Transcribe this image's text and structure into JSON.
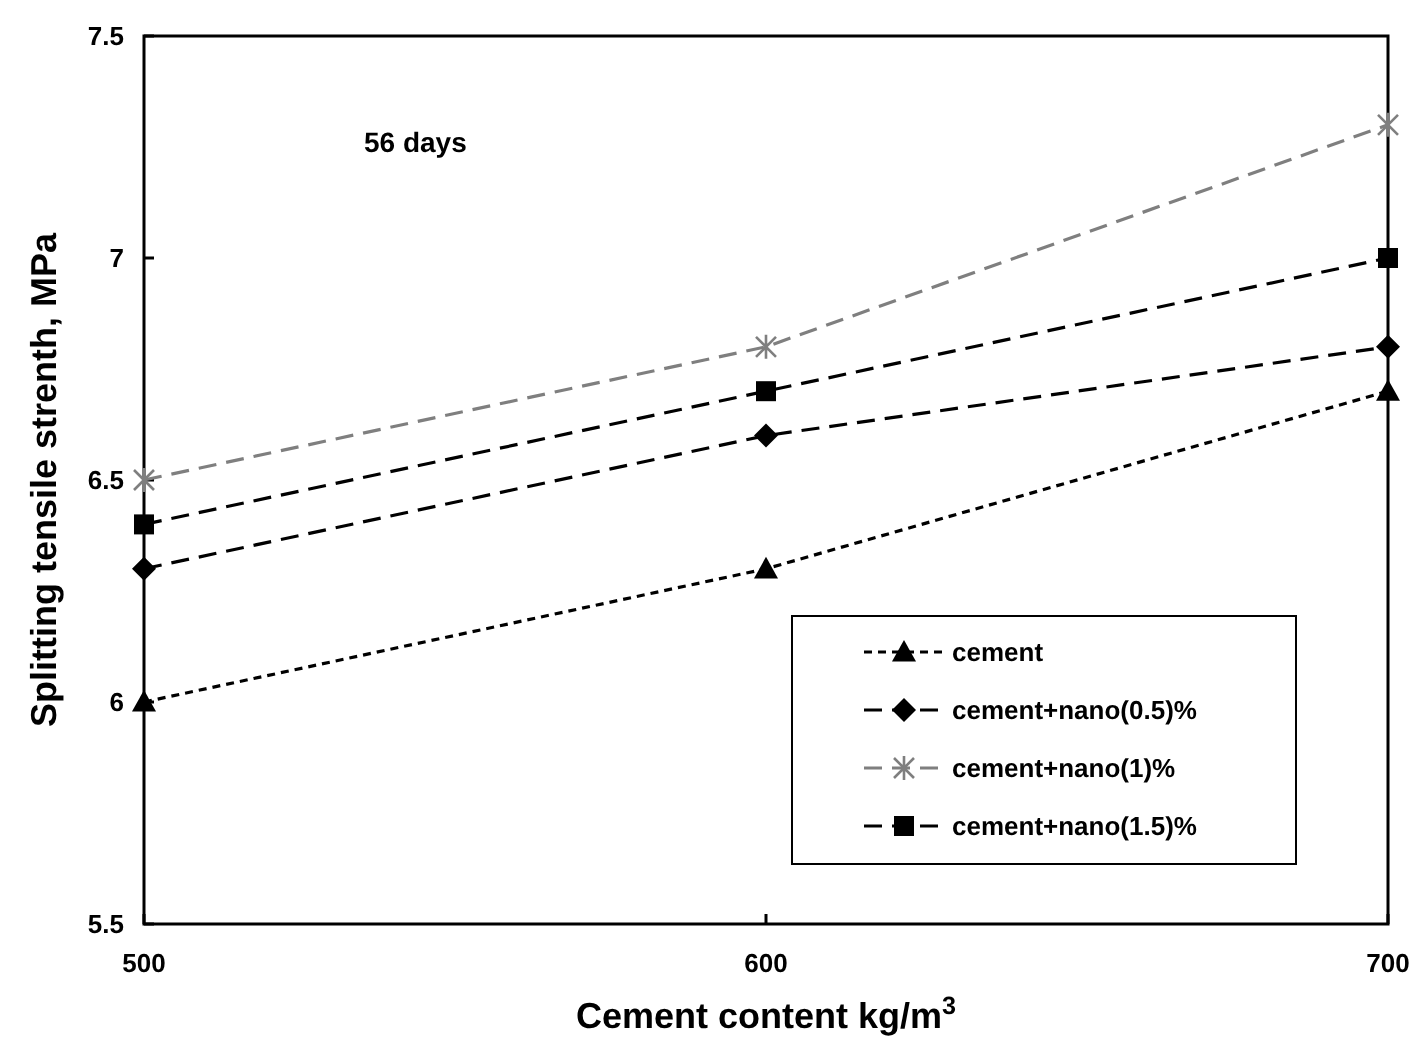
{
  "chart_data": {
    "type": "line",
    "xlabel": "Cement content kg/m$^{3}$",
    "ylabel": "Splitting tensile strenth, MPa",
    "annotations": [
      "56 days"
    ],
    "x": [
      500,
      600,
      700
    ],
    "xlim": [
      500,
      700
    ],
    "xticks": [
      500,
      600,
      700
    ],
    "ylim": [
      5.5,
      7.5
    ],
    "yticks": [
      5.5,
      6,
      6.5,
      7,
      7.5
    ],
    "grid": false,
    "legend": "bottom right",
    "series": [
      {
        "name": "cement",
        "color": "#000000",
        "values": [
          6.0,
          6.3,
          6.7
        ],
        "marker": "triangle",
        "line_style": "dotted"
      },
      {
        "name": "cement+nano(0.5)%",
        "color": "#000000",
        "values": [
          6.3,
          6.6,
          6.8
        ],
        "marker": "diamond",
        "line_style": "dashed"
      },
      {
        "name": "cement+nano(1)%",
        "color": "#7f7f7f",
        "values": [
          6.5,
          6.8,
          7.3
        ],
        "marker": "cross",
        "line_style": "dashed"
      },
      {
        "name": "cement+nano(1.5)%",
        "color": "#000000",
        "values": [
          6.4,
          6.7,
          7.0
        ],
        "marker": "square",
        "line_style": "dashed"
      }
    ]
  }
}
